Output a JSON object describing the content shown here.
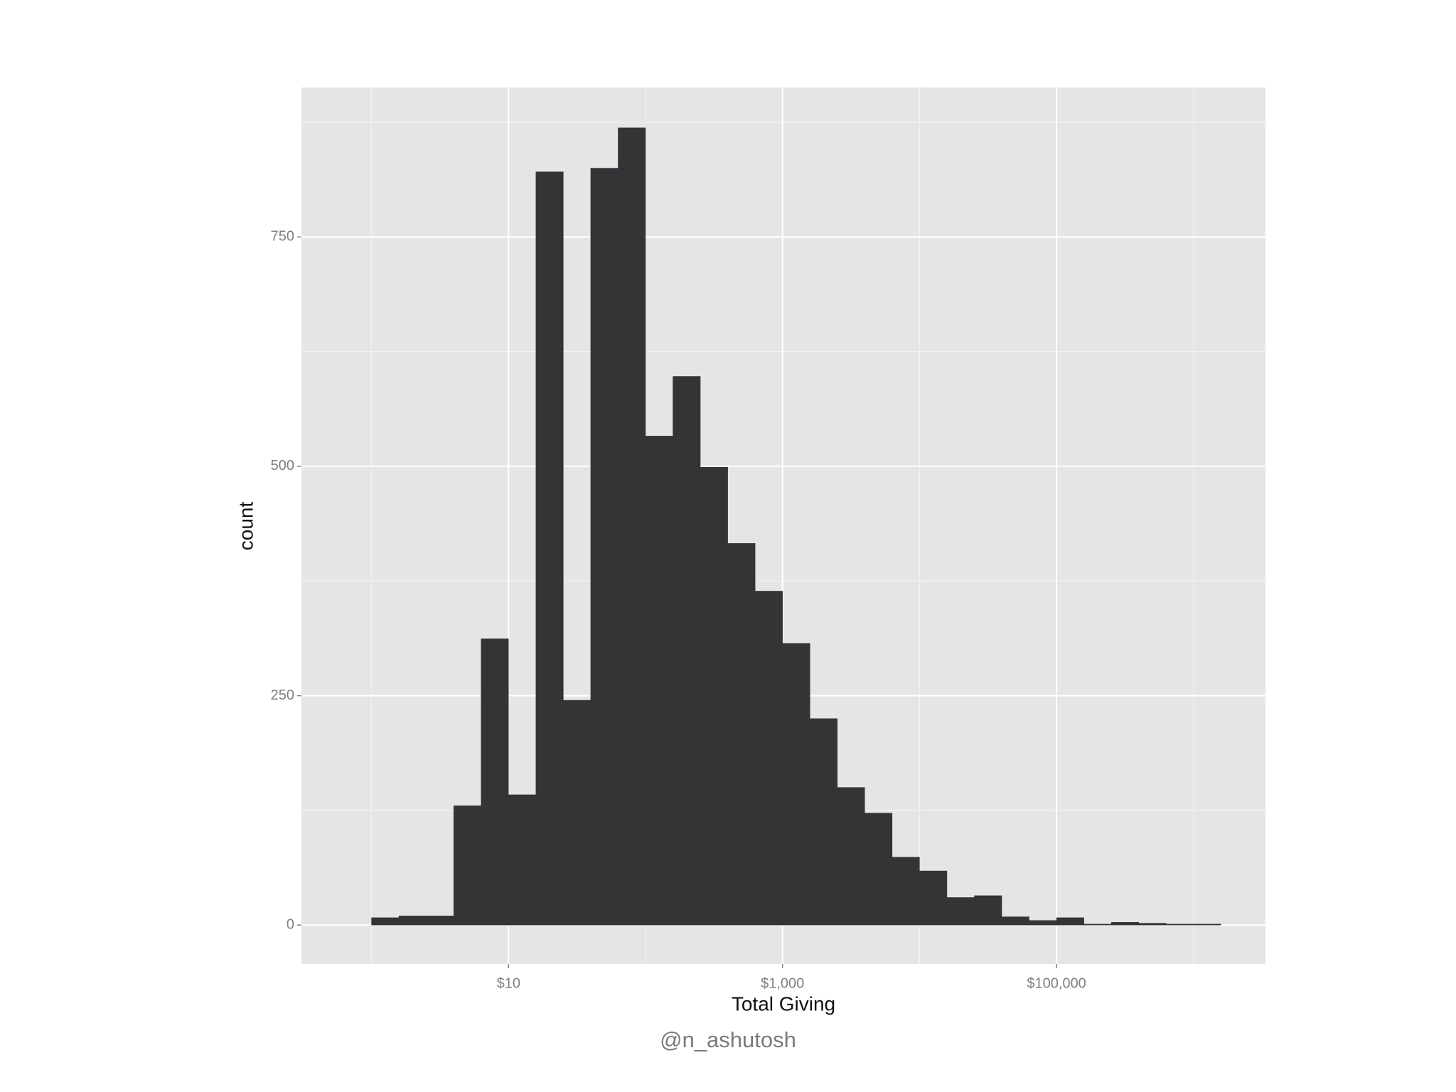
{
  "chart_data": {
    "type": "histogram",
    "xlabel": "Total Giving",
    "ylabel": "count",
    "caption": "@n_ashutosh",
    "xscale": "log",
    "grid": true,
    "color": "#353336",
    "panel_color": "#e5e5e5",
    "bins": [
      1,
      1.585,
      2.512,
      3.981,
      6.31,
      10,
      15.85,
      25.12,
      39.81,
      63.1,
      100,
      158.5,
      251.2,
      398.1,
      631,
      1000,
      1585,
      2512,
      3981,
      6310,
      10000,
      15849,
      25119,
      39811,
      63096,
      100000,
      158489,
      251189,
      398107,
      630957,
      1000000,
      1584893
    ],
    "counts": [
      8,
      10,
      10,
      130,
      312,
      142,
      821,
      245,
      825,
      869,
      533,
      598,
      499,
      416,
      364,
      307,
      225,
      150,
      122,
      74,
      59,
      30,
      32,
      9,
      5,
      8,
      1,
      3,
      2,
      1,
      1
    ],
    "xlim": [
      0.308,
      3350000
    ],
    "ylim": [
      -42.5,
      913
    ],
    "xticks": [
      {
        "value": 10,
        "label": "$10"
      },
      {
        "value": 1000,
        "label": "$1,000"
      },
      {
        "value": 100000,
        "label": "$100,000"
      }
    ],
    "yticks": [
      0,
      250,
      500,
      750
    ],
    "x_minor_grid": [
      1,
      100,
      10000,
      1000000
    ],
    "y_minor_grid": [
      125,
      375,
      625,
      875
    ]
  }
}
